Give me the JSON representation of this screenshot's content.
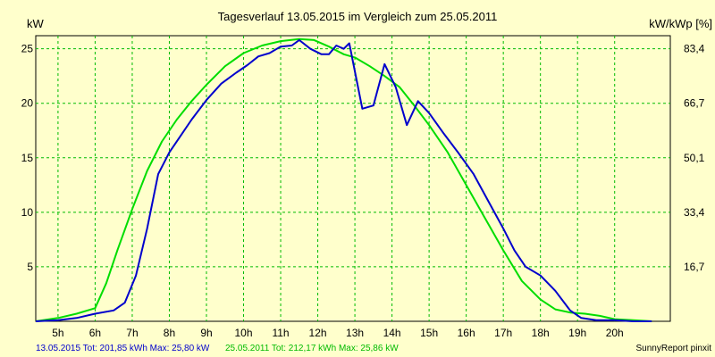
{
  "chart_data": {
    "type": "line",
    "title": "Tagesverlauf 13.05.2015 im Vergleich zum 25.05.2011",
    "ylabel_left": "kW",
    "ylabel_right": "kW/kWp [%]",
    "x_ticks": [
      "5h",
      "6h",
      "7h",
      "8h",
      "9h",
      "10h",
      "11h",
      "12h",
      "13h",
      "14h",
      "15h",
      "16h",
      "17h",
      "18h",
      "19h",
      "20h"
    ],
    "x_tick_values": [
      5,
      6,
      7,
      8,
      9,
      10,
      11,
      12,
      13,
      14,
      15,
      16,
      17,
      18,
      19,
      20
    ],
    "xlim": [
      4.4,
      21.5
    ],
    "ylim": [
      0,
      26.2
    ],
    "y_ticks_left": [
      {
        "value": 5,
        "label": "5"
      },
      {
        "value": 10,
        "label": "10"
      },
      {
        "value": 15,
        "label": "15"
      },
      {
        "value": 20,
        "label": "20"
      },
      {
        "value": 25,
        "label": "25"
      }
    ],
    "y_ticks_right": [
      {
        "value": 5,
        "label": "16,7"
      },
      {
        "value": 10,
        "label": "33,4"
      },
      {
        "value": 15,
        "label": "50,1"
      },
      {
        "value": 20,
        "label": "66,7"
      },
      {
        "value": 25,
        "label": "83,4"
      }
    ],
    "grid": true,
    "series": [
      {
        "name": "13.05.2015",
        "color": "#0000cc",
        "x": [
          4.4,
          5.0,
          5.5,
          6.0,
          6.5,
          6.8,
          7.1,
          7.4,
          7.7,
          8.0,
          8.3,
          8.6,
          9.0,
          9.4,
          9.8,
          10.1,
          10.4,
          10.7,
          11.0,
          11.3,
          11.5,
          11.8,
          12.1,
          12.3,
          12.5,
          12.7,
          12.85,
          13.2,
          13.5,
          13.8,
          14.1,
          14.4,
          14.7,
          15.0,
          15.4,
          15.8,
          16.2,
          16.6,
          17.0,
          17.3,
          17.6,
          18.0,
          18.4,
          18.8,
          19.1,
          19.5,
          20.0,
          20.5,
          21.0
        ],
        "y": [
          0,
          0.1,
          0.3,
          0.7,
          1.0,
          1.7,
          4.2,
          8.5,
          13.5,
          15.5,
          17.0,
          18.5,
          20.3,
          21.8,
          22.8,
          23.5,
          24.3,
          24.6,
          25.2,
          25.3,
          25.8,
          25.0,
          24.5,
          24.5,
          25.3,
          25.0,
          25.5,
          19.5,
          19.8,
          23.6,
          21.5,
          18.0,
          20.2,
          19.1,
          17.2,
          15.4,
          13.5,
          11.0,
          8.5,
          6.5,
          5.0,
          4.2,
          2.8,
          1.0,
          0.3,
          0.1,
          0.1,
          0,
          0
        ]
      },
      {
        "name": "25.05.2011",
        "color": "#00dd00",
        "x": [
          4.4,
          5.0,
          5.5,
          6.0,
          6.3,
          6.6,
          7.0,
          7.4,
          7.8,
          8.2,
          8.6,
          9.0,
          9.5,
          10.0,
          10.5,
          11.0,
          11.5,
          11.9,
          12.3,
          12.7,
          13.0,
          13.4,
          13.8,
          14.2,
          14.6,
          15.0,
          15.5,
          16.0,
          16.5,
          17.0,
          17.5,
          18.0,
          18.4,
          18.8,
          19.2,
          19.6,
          20.0,
          20.5,
          21.0
        ],
        "y": [
          0,
          0.3,
          0.7,
          1.2,
          3.5,
          6.5,
          10.3,
          13.8,
          16.5,
          18.5,
          20.2,
          21.7,
          23.4,
          24.6,
          25.3,
          25.7,
          25.9,
          25.8,
          25.2,
          24.5,
          24.2,
          23.4,
          22.5,
          21.5,
          19.8,
          18.0,
          15.5,
          12.5,
          9.5,
          6.5,
          3.7,
          2.0,
          1.1,
          0.8,
          0.7,
          0.5,
          0.2,
          0.1,
          0
        ]
      }
    ]
  },
  "footer": {
    "series1_text": "13.05.2015 Tot: 201,85 kWh Max: 25,80 kW",
    "series2_text": "25.05.2011 Tot: 212,17 kWh Max: 25,86 kW",
    "brand": "SunnyReport pinxit"
  }
}
